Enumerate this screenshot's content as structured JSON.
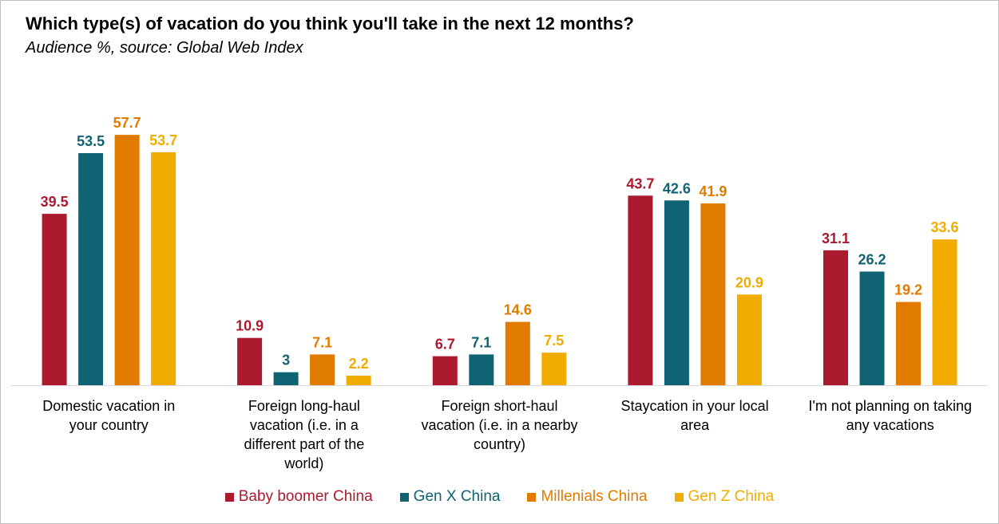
{
  "chart_data": {
    "type": "bar",
    "title": "Which type(s) of vacation do you think you'll take in the next 12 months?",
    "subtitle": "Audience %, source: Global Web Index",
    "categories": [
      [
        "Domestic vacation in",
        "your country"
      ],
      [
        "Foreign long-haul",
        "vacation (i.e. in a",
        "different part of the",
        "world)"
      ],
      [
        "Foreign short-haul",
        "vacation (i.e. in a nearby",
        "country)"
      ],
      [
        "Staycation in your local",
        "area"
      ],
      [
        "I'm not planning on taking",
        "any vacations"
      ]
    ],
    "series": [
      {
        "name": "Baby boomer China",
        "color": "#ab1a2e",
        "values": [
          39.5,
          10.9,
          6.7,
          43.7,
          31.1
        ],
        "labels": [
          "39.5",
          "10.9",
          "6.7",
          "43.7",
          "31.1"
        ]
      },
      {
        "name": "Gen X China",
        "color": "#0f6373",
        "values": [
          53.5,
          3,
          7.1,
          42.6,
          26.2
        ],
        "labels": [
          "53.5",
          "3",
          "7.1",
          "42.6",
          "26.2"
        ]
      },
      {
        "name": "Millenials China",
        "color": "#e07b00",
        "values": [
          57.7,
          7.1,
          14.6,
          41.9,
          19.2
        ],
        "labels": [
          "57.7",
          "7.1",
          "14.6",
          "41.9",
          "19.2"
        ]
      },
      {
        "name": "Gen Z China",
        "color": "#f0ac00",
        "values": [
          53.7,
          2.2,
          7.5,
          20.9,
          33.6
        ],
        "labels": [
          "53.7",
          "2.2",
          "7.5",
          "20.9",
          "33.6"
        ]
      }
    ],
    "ylim": [
      0,
      60
    ],
    "grid": false,
    "legend_position": "bottom"
  }
}
